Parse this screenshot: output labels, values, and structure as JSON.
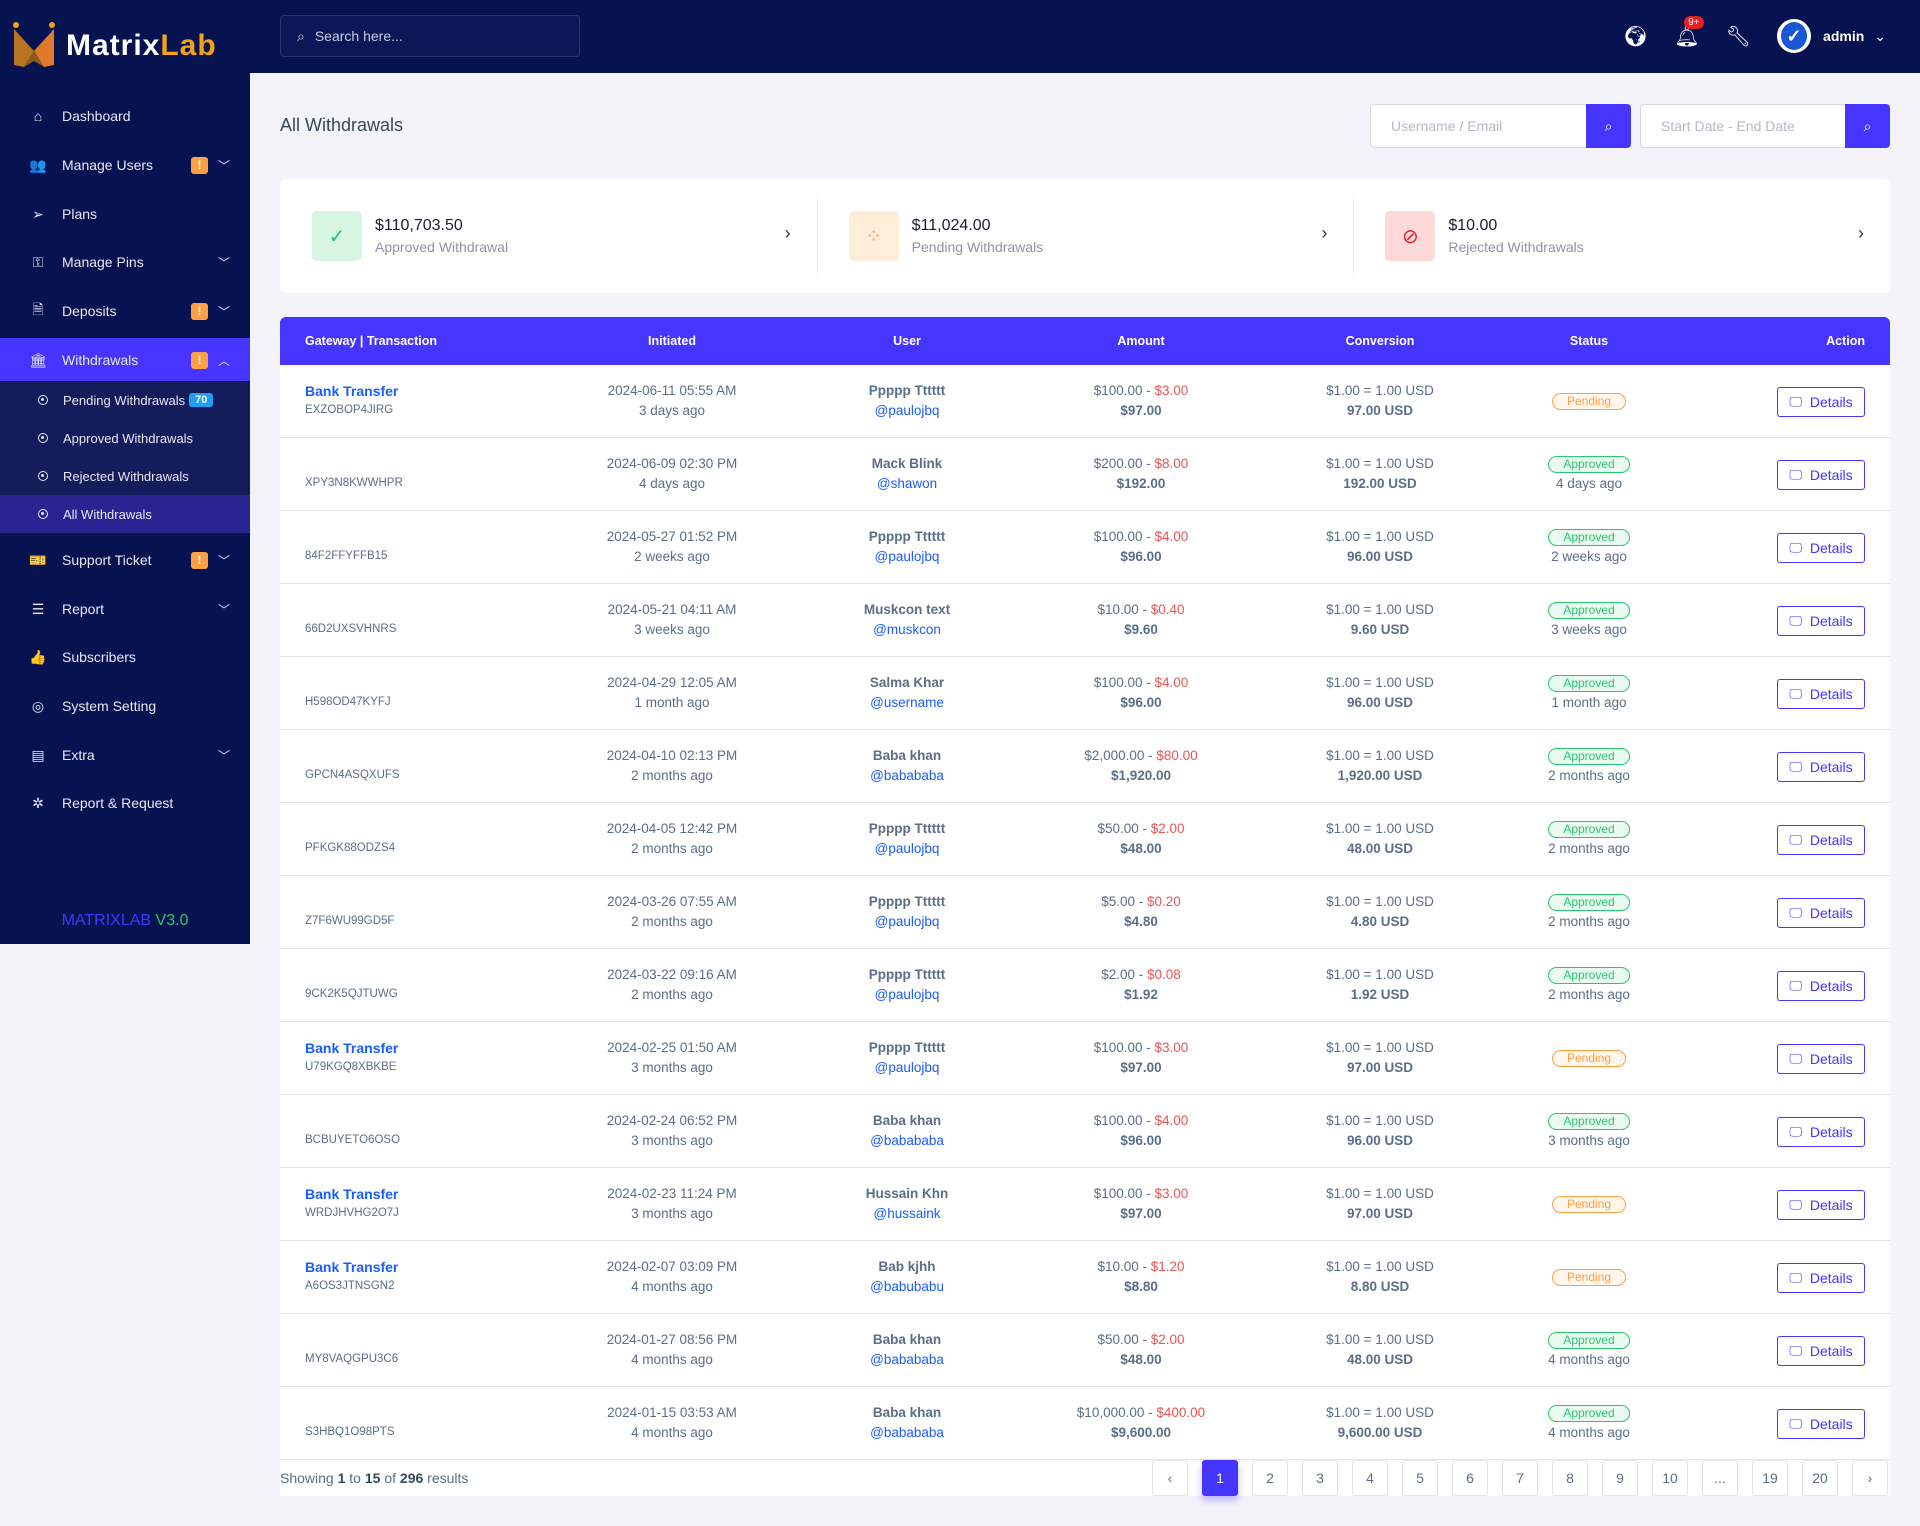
{
  "brand": {
    "name_a": "Matrix",
    "name_b": "Lab",
    "version_a": "MATRIXLAB",
    "version_b": "V3.0"
  },
  "colors": {
    "sidebar": "#071251",
    "accent": "#4634ff",
    "pending": "#ff9f43",
    "approved": "#28c76f",
    "rejected": "#ea5455"
  },
  "sidebar": {
    "items": [
      {
        "label": "Dashboard",
        "icon": "home-icon",
        "glyph": "⌂"
      },
      {
        "label": "Manage Users",
        "icon": "users-icon",
        "glyph": "👥",
        "badge": "!",
        "chevron": "down"
      },
      {
        "label": "Plans",
        "icon": "paper-plane-icon",
        "glyph": "➢"
      },
      {
        "label": "Manage Pins",
        "icon": "key-icon",
        "glyph": "⚿",
        "chevron": "down"
      },
      {
        "label": "Deposits",
        "icon": "invoice-dollar-icon",
        "glyph": "🗎",
        "badge": "!",
        "chevron": "down"
      },
      {
        "label": "Withdrawals",
        "icon": "bank-icon",
        "glyph": "🏛",
        "badge": "!",
        "chevron": "up",
        "active": true
      },
      {
        "label": "Support Ticket",
        "icon": "ticket-icon",
        "glyph": "🎫",
        "badge": "!",
        "chevron": "down"
      },
      {
        "label": "Report",
        "icon": "list-icon",
        "glyph": "☰",
        "chevron": "down"
      },
      {
        "label": "Subscribers",
        "icon": "thumbs-up-icon",
        "glyph": "👍"
      },
      {
        "label": "System Setting",
        "icon": "life-ring-icon",
        "glyph": "◎"
      },
      {
        "label": "Extra",
        "icon": "server-icon",
        "glyph": "▤",
        "chevron": "down"
      },
      {
        "label": "Report & Request",
        "icon": "bug-icon",
        "glyph": "✲"
      }
    ],
    "submenu": [
      {
        "label": "Pending Withdrawals",
        "count": "70"
      },
      {
        "label": "Approved Withdrawals"
      },
      {
        "label": "Rejected Withdrawals"
      },
      {
        "label": "All Withdrawals",
        "active": true
      }
    ]
  },
  "header": {
    "search_placeholder": "Search here...",
    "notification_badge": "9+",
    "user": "admin"
  },
  "page": {
    "title": "All Withdrawals",
    "filter_user_placeholder": "Username / Email",
    "filter_date_placeholder": "Start Date - End Date"
  },
  "stats": [
    {
      "amount": "$110,703.50",
      "label": "Approved Withdrawal",
      "icon": "check-circle-icon",
      "type": "approved"
    },
    {
      "amount": "$11,024.00",
      "label": "Pending Withdrawals",
      "icon": "spinner-icon",
      "type": "pending"
    },
    {
      "amount": "$10.00",
      "label": "Rejected Withdrawals",
      "icon": "ban-icon",
      "type": "rejected"
    }
  ],
  "table": {
    "columns": [
      "Gateway | Transaction",
      "Initiated",
      "User",
      "Amount",
      "Conversion",
      "Status",
      "Action"
    ],
    "action_label": "Details",
    "rows": [
      {
        "gateway": "Bank Transfer",
        "trx": "EXZOBOP4JIRG",
        "date": "2024-06-11 05:55 AM",
        "ago": "3 days ago",
        "name": "Ppppp Tttttt",
        "handle": "@paulojbq",
        "amount": "$100.00",
        "charge": "$3.00",
        "net": "$97.00",
        "rate": "$1.00 = 1.00 USD",
        "final": "97.00 USD",
        "status": "Pending",
        "status_ago": ""
      },
      {
        "gateway": "",
        "trx": "XPY3N8KWWHPR",
        "date": "2024-06-09 02:30 PM",
        "ago": "4 days ago",
        "name": "Mack Blink",
        "handle": "@shawon",
        "amount": "$200.00",
        "charge": "$8.00",
        "net": "$192.00",
        "rate": "$1.00 = 1.00 USD",
        "final": "192.00 USD",
        "status": "Approved",
        "status_ago": "4 days ago"
      },
      {
        "gateway": "",
        "trx": "84F2FFYFFB15",
        "date": "2024-05-27 01:52 PM",
        "ago": "2 weeks ago",
        "name": "Ppppp Tttttt",
        "handle": "@paulojbq",
        "amount": "$100.00",
        "charge": "$4.00",
        "net": "$96.00",
        "rate": "$1.00 = 1.00 USD",
        "final": "96.00 USD",
        "status": "Approved",
        "status_ago": "2 weeks ago"
      },
      {
        "gateway": "",
        "trx": "66D2UXSVHNRS",
        "date": "2024-05-21 04:11 AM",
        "ago": "3 weeks ago",
        "name": "Muskcon text",
        "handle": "@muskcon",
        "amount": "$10.00",
        "charge": "$0.40",
        "net": "$9.60",
        "rate": "$1.00 = 1.00 USD",
        "final": "9.60 USD",
        "status": "Approved",
        "status_ago": "3 weeks ago"
      },
      {
        "gateway": "",
        "trx": "H598OD47KYFJ",
        "date": "2024-04-29 12:05 AM",
        "ago": "1 month ago",
        "name": "Salma Khar",
        "handle": "@username",
        "amount": "$100.00",
        "charge": "$4.00",
        "net": "$96.00",
        "rate": "$1.00 = 1.00 USD",
        "final": "96.00 USD",
        "status": "Approved",
        "status_ago": "1 month ago"
      },
      {
        "gateway": "",
        "trx": "GPCN4ASQXUFS",
        "date": "2024-04-10 02:13 PM",
        "ago": "2 months ago",
        "name": "Baba khan",
        "handle": "@babababa",
        "amount": "$2,000.00",
        "charge": "$80.00",
        "net": "$1,920.00",
        "rate": "$1.00 = 1.00 USD",
        "final": "1,920.00 USD",
        "status": "Approved",
        "status_ago": "2 months ago"
      },
      {
        "gateway": "",
        "trx": "PFKGK88ODZS4",
        "date": "2024-04-05 12:42 PM",
        "ago": "2 months ago",
        "name": "Ppppp Tttttt",
        "handle": "@paulojbq",
        "amount": "$50.00",
        "charge": "$2.00",
        "net": "$48.00",
        "rate": "$1.00 = 1.00 USD",
        "final": "48.00 USD",
        "status": "Approved",
        "status_ago": "2 months ago"
      },
      {
        "gateway": "",
        "trx": "Z7F6WU99GD5F",
        "date": "2024-03-26 07:55 AM",
        "ago": "2 months ago",
        "name": "Ppppp Tttttt",
        "handle": "@paulojbq",
        "amount": "$5.00",
        "charge": "$0.20",
        "net": "$4.80",
        "rate": "$1.00 = 1.00 USD",
        "final": "4.80 USD",
        "status": "Approved",
        "status_ago": "2 months ago"
      },
      {
        "gateway": "",
        "trx": "9CK2K5QJTUWG",
        "date": "2024-03-22 09:16 AM",
        "ago": "2 months ago",
        "name": "Ppppp Tttttt",
        "handle": "@paulojbq",
        "amount": "$2.00",
        "charge": "$0.08",
        "net": "$1.92",
        "rate": "$1.00 = 1.00 USD",
        "final": "1.92 USD",
        "status": "Approved",
        "status_ago": "2 months ago"
      },
      {
        "gateway": "Bank Transfer",
        "trx": "U79KGQ8XBKBE",
        "date": "2024-02-25 01:50 AM",
        "ago": "3 months ago",
        "name": "Ppppp Tttttt",
        "handle": "@paulojbq",
        "amount": "$100.00",
        "charge": "$3.00",
        "net": "$97.00",
        "rate": "$1.00 = 1.00 USD",
        "final": "97.00 USD",
        "status": "Pending",
        "status_ago": ""
      },
      {
        "gateway": "",
        "trx": "BCBUYETO6OSO",
        "date": "2024-02-24 06:52 PM",
        "ago": "3 months ago",
        "name": "Baba khan",
        "handle": "@babababa",
        "amount": "$100.00",
        "charge": "$4.00",
        "net": "$96.00",
        "rate": "$1.00 = 1.00 USD",
        "final": "96.00 USD",
        "status": "Approved",
        "status_ago": "3 months ago"
      },
      {
        "gateway": "Bank Transfer",
        "trx": "WRDJHVHG2O7J",
        "date": "2024-02-23 11:24 PM",
        "ago": "3 months ago",
        "name": "Hussain Khn",
        "handle": "@hussaink",
        "amount": "$100.00",
        "charge": "$3.00",
        "net": "$97.00",
        "rate": "$1.00 = 1.00 USD",
        "final": "97.00 USD",
        "status": "Pending",
        "status_ago": ""
      },
      {
        "gateway": "Bank Transfer",
        "trx": "A6OS3JTNSGN2",
        "date": "2024-02-07 03:09 PM",
        "ago": "4 months ago",
        "name": "Bab kjhh",
        "handle": "@babubabu",
        "amount": "$10.00",
        "charge": "$1.20",
        "net": "$8.80",
        "rate": "$1.00 = 1.00 USD",
        "final": "8.80 USD",
        "status": "Pending",
        "status_ago": ""
      },
      {
        "gateway": "",
        "trx": "MY8VAQGPU3C6",
        "date": "2024-01-27 08:56 PM",
        "ago": "4 months ago",
        "name": "Baba khan",
        "handle": "@babababa",
        "amount": "$50.00",
        "charge": "$2.00",
        "net": "$48.00",
        "rate": "$1.00 = 1.00 USD",
        "final": "48.00 USD",
        "status": "Approved",
        "status_ago": "4 months ago"
      },
      {
        "gateway": "",
        "trx": "S3HBQ1O98PTS",
        "date": "2024-01-15 03:53 AM",
        "ago": "4 months ago",
        "name": "Baba khan",
        "handle": "@babababa",
        "amount": "$10,000.00",
        "charge": "$400.00",
        "net": "$9,600.00",
        "rate": "$1.00 = 1.00 USD",
        "final": "9,600.00 USD",
        "status": "Approved",
        "status_ago": "4 months ago"
      }
    ]
  },
  "pagination": {
    "showing_prefix": "Showing",
    "from": "1",
    "to_word": "to",
    "to": "15",
    "of_word": "of",
    "total": "296",
    "suffix": "results",
    "prev": "‹",
    "next": "›",
    "pages": [
      "1",
      "2",
      "3",
      "4",
      "5",
      "6",
      "7",
      "8",
      "9",
      "10",
      "...",
      "19",
      "20"
    ],
    "current": "1"
  }
}
